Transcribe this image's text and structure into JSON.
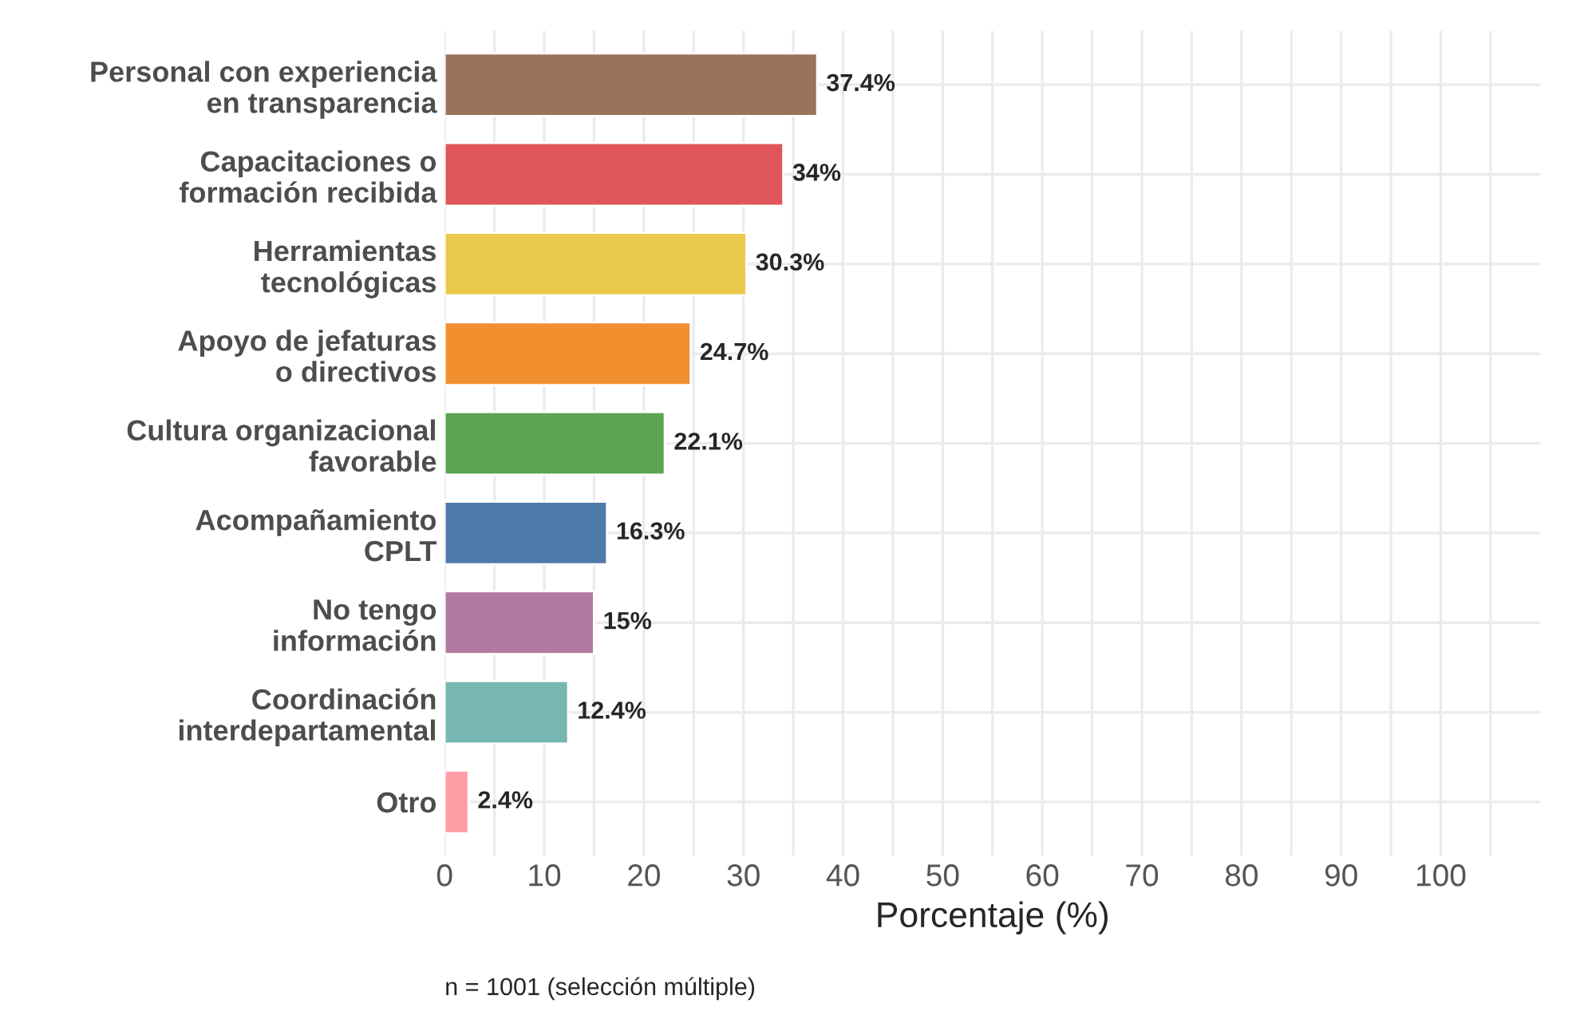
{
  "chart_data": {
    "type": "bar",
    "orientation": "horizontal",
    "categories": [
      "Personal con experiencia\nen transparencia",
      "Capacitaciones o\nformación recibida",
      "Herramientas\ntecnológicas",
      "Apoyo de jefaturas\no directivos",
      "Cultura organizacional\nfavorable",
      "Acompañamiento\nCPLT",
      "No tengo\ninformación",
      "Coordinación\ninterdepartamental",
      "Otro"
    ],
    "values": [
      37.4,
      34,
      30.3,
      24.7,
      22.1,
      16.3,
      15,
      12.4,
      2.4
    ],
    "colors": [
      "#9a735a",
      "#e05558",
      "#ebc94a",
      "#f28f2e",
      "#5aa453",
      "#4e7aa9",
      "#b07aa1",
      "#76b7b2",
      "#ff9da7"
    ],
    "value_labels": [
      "37.4%",
      "34%",
      "30.3%",
      "24.7%",
      "22.1%",
      "16.3%",
      "15%",
      "12.4%",
      "2.4%"
    ],
    "xlabel": "Porcentaje (%)",
    "xlim": [
      0,
      110
    ],
    "xticks": [
      0,
      {
        "value": 5,
        "label": null
      },
      10,
      {
        "value": 15,
        "label": null
      },
      20,
      {
        "value": 25,
        "label": null
      },
      30,
      {
        "value": 35,
        "label": null
      },
      40,
      {
        "value": 45,
        "label": null
      },
      50,
      {
        "value": 55,
        "label": null
      },
      60,
      {
        "value": 65,
        "label": null
      },
      70,
      {
        "value": 75,
        "label": null
      },
      80,
      {
        "value": 85,
        "label": null
      },
      90,
      {
        "value": 95,
        "label": null
      },
      100,
      {
        "value": 105,
        "label": null
      }
    ],
    "grid": true,
    "annotations": [
      "n = 1001 (selección múltiple)"
    ]
  }
}
